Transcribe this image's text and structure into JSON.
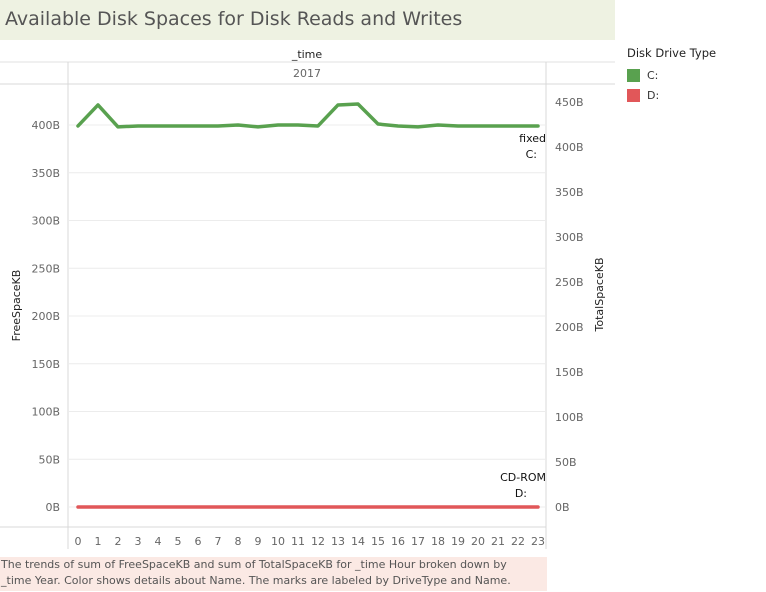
{
  "title": "Available Disk Spaces for Disk Reads and Writes",
  "legend": {
    "title": "Disk Drive Type",
    "items": [
      {
        "label": "C:",
        "color": "#59a14f"
      },
      {
        "label": "D:",
        "color": "#e15759"
      }
    ]
  },
  "caption": {
    "line1": "The trends of sum of FreeSpaceKB and sum of TotalSpaceKB for _time Hour broken down by",
    "line2": "_time Year.  Color shows details about Name.  The marks are labeled by DriveType and Name."
  },
  "chart_data": {
    "type": "line",
    "header": {
      "field": "_time",
      "value": "2017"
    },
    "x": [
      0,
      1,
      2,
      3,
      4,
      5,
      6,
      7,
      8,
      9,
      10,
      11,
      12,
      13,
      14,
      15,
      16,
      17,
      18,
      19,
      20,
      21,
      22,
      23
    ],
    "y_left": {
      "label": "FreeSpaceKB",
      "ticks": [
        "0B",
        "50B",
        "100B",
        "150B",
        "200B",
        "250B",
        "300B",
        "350B",
        "400B"
      ],
      "ylim": [
        0,
        440
      ]
    },
    "y_right": {
      "label": "TotalSpaceKB",
      "ticks": [
        "0B",
        "50B",
        "100B",
        "150B",
        "200B",
        "250B",
        "300B",
        "350B",
        "400B",
        "450B"
      ],
      "ylim": [
        0,
        450
      ]
    },
    "series": [
      {
        "name": "C:",
        "drive_type": "fixed",
        "color": "#59a14f",
        "values": [
          399,
          421,
          398,
          399,
          399,
          399,
          399,
          399,
          400,
          398,
          400,
          400,
          399,
          421,
          422,
          401,
          399,
          398,
          400,
          399,
          399,
          399,
          399,
          399
        ]
      },
      {
        "name": "D:",
        "drive_type": "CD-ROM",
        "color": "#e15759",
        "values": [
          0,
          0,
          0,
          0,
          0,
          0,
          0,
          0,
          0,
          0,
          0,
          0,
          0,
          0,
          0,
          0,
          0,
          0,
          0,
          0,
          0,
          0,
          0,
          0
        ]
      }
    ],
    "grid": true
  }
}
